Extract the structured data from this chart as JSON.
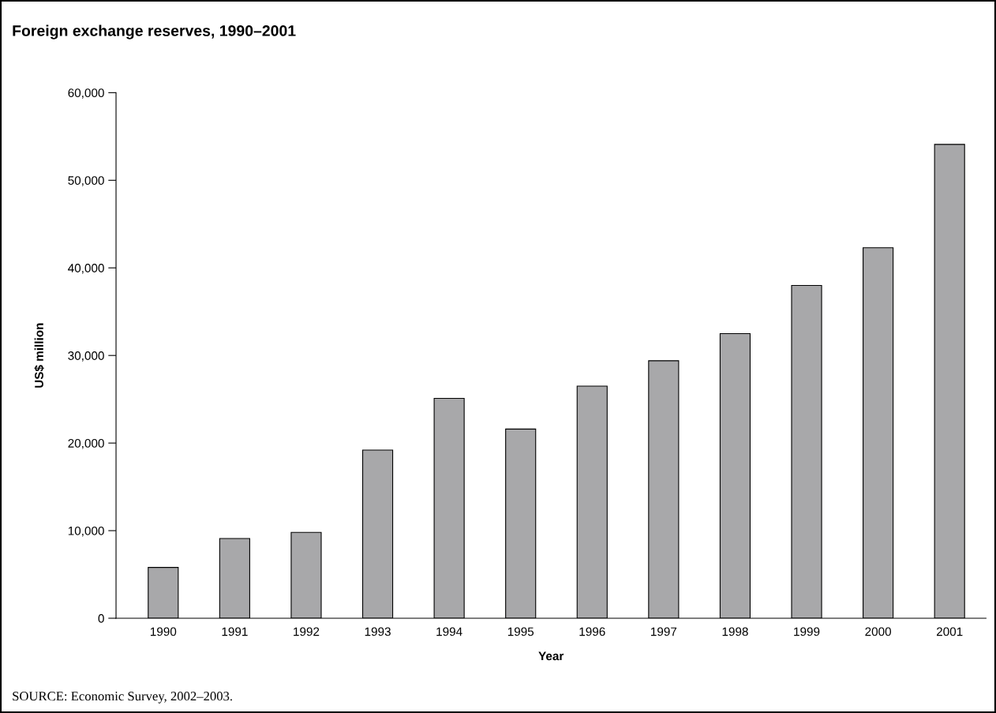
{
  "chart_data": {
    "type": "bar",
    "title": "Foreign exchange reserves, 1990–2001",
    "xlabel": "Year",
    "ylabel": "US$ million",
    "categories": [
      "1990",
      "1991",
      "1992",
      "1993",
      "1994",
      "1995",
      "1996",
      "1997",
      "1998",
      "1999",
      "2000",
      "2001"
    ],
    "series": [
      {
        "color": "#a8a8aa",
        "values": [
          5800,
          9100,
          9800,
          19200,
          25100,
          21600,
          26500,
          29400,
          32500,
          38000,
          42300,
          54100
        ]
      }
    ],
    "ylim": [
      0,
      60000
    ],
    "yticks": [
      {
        "value": 0,
        "label": "0"
      },
      {
        "value": 10000,
        "label": "10,000"
      },
      {
        "value": 20000,
        "label": "20,000"
      },
      {
        "value": 30000,
        "label": "30,000"
      },
      {
        "value": 40000,
        "label": "40,000"
      },
      {
        "value": 50000,
        "label": "50,000"
      },
      {
        "value": 60000,
        "label": "60,000"
      }
    ],
    "grid": false,
    "annotations": [
      "SOURCE: Economic Survey, 2002–2003."
    ]
  }
}
